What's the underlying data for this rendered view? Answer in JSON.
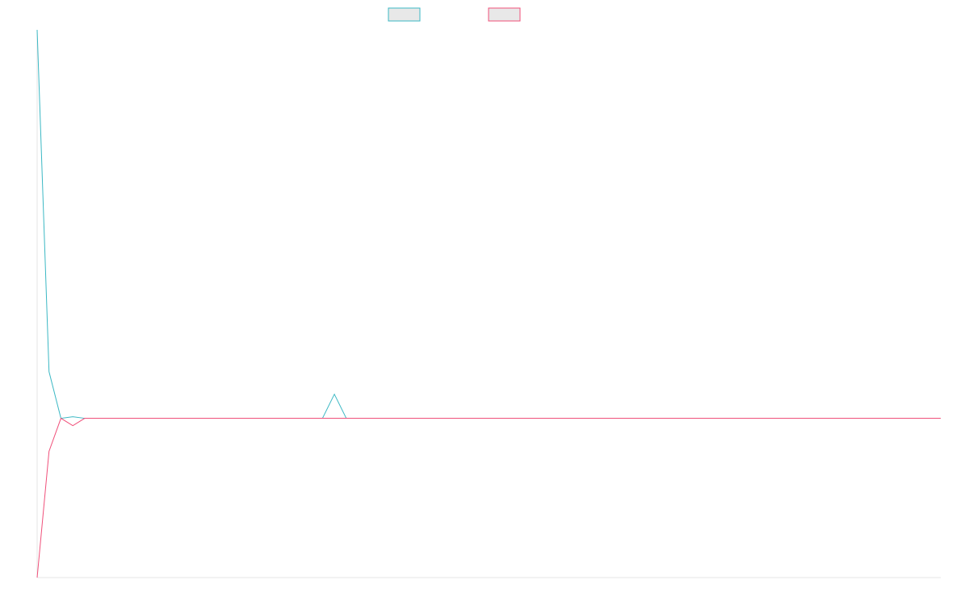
{
  "chart_data": {
    "type": "line",
    "ylim": [
      -0.41,
      1
    ],
    "series": [
      {
        "color": "#3bb8c4",
        "values": [
          1,
          0.12,
          0,
          0.004,
          0,
          0,
          0,
          0,
          0,
          0,
          0,
          0,
          0,
          0,
          0,
          0,
          0,
          0,
          0,
          0,
          0,
          0,
          0,
          0,
          0,
          0.062,
          0,
          0,
          0,
          0,
          0,
          0,
          0,
          0,
          0,
          0,
          0,
          0,
          0,
          0,
          0,
          0,
          0,
          0,
          0,
          0,
          0,
          0,
          0,
          0,
          0,
          0,
          0,
          0,
          0,
          0,
          0,
          0,
          0,
          0,
          0,
          0,
          0,
          0,
          0,
          0,
          0,
          0,
          0,
          0,
          0,
          0,
          0,
          0,
          0,
          0,
          0
        ]
      },
      {
        "color": "#f0507a",
        "values": [
          -0.41,
          -0.085,
          0,
          -0.019,
          0,
          0,
          0,
          0,
          0,
          0,
          0,
          0,
          0,
          0,
          0,
          0,
          0,
          0,
          0,
          0,
          0,
          0,
          0,
          0,
          0,
          0,
          0,
          0,
          0,
          0,
          0,
          0,
          0,
          0,
          0,
          0,
          0,
          0,
          0,
          0,
          0,
          0,
          0,
          0,
          0,
          0,
          0,
          0,
          0,
          0,
          0,
          0,
          0,
          0,
          0,
          0,
          0,
          0,
          0,
          0,
          0,
          0,
          0,
          0,
          0,
          0,
          0,
          0,
          0,
          0,
          0,
          0,
          0,
          0,
          0,
          0,
          0
        ]
      }
    ]
  }
}
